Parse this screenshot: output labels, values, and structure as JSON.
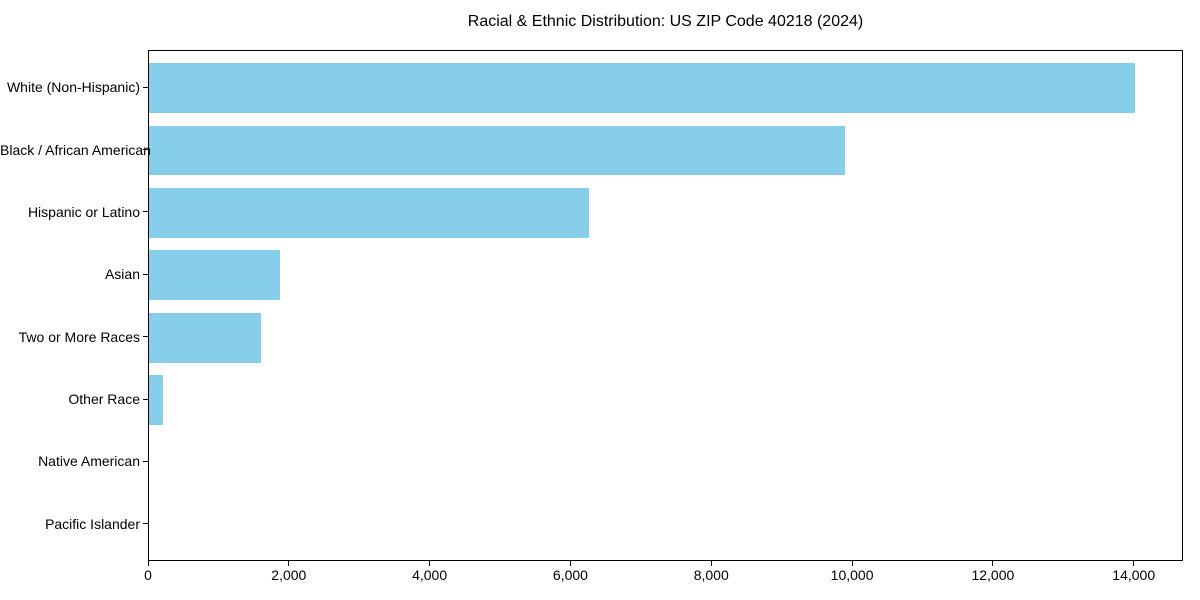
{
  "chart_data": {
    "type": "bar",
    "orientation": "horizontal",
    "title": "Racial & Ethnic Distribution: US ZIP Code 40218 (2024)",
    "categories": [
      "White (Non-Hispanic)",
      "Black / African American",
      "Hispanic or Latino",
      "Asian",
      "Two or More Races",
      "Other Race",
      "Native American",
      "Pacific Islander"
    ],
    "values": [
      14000,
      9880,
      6250,
      1860,
      1590,
      200,
      0,
      0
    ],
    "bar_color": "#87CEEB",
    "axis_color": "#000000",
    "text_color": "#000000",
    "background_color": "#ffffff",
    "xlabel": "",
    "ylabel": "",
    "xlim": [
      0,
      14700
    ],
    "x_ticks": [
      0,
      2000,
      4000,
      6000,
      8000,
      10000,
      12000,
      14000
    ],
    "x_tick_labels": [
      "0",
      "2,000",
      "4,000",
      "6,000",
      "8,000",
      "10,000",
      "12,000",
      "14,000"
    ],
    "grid": false,
    "legend": "none"
  }
}
